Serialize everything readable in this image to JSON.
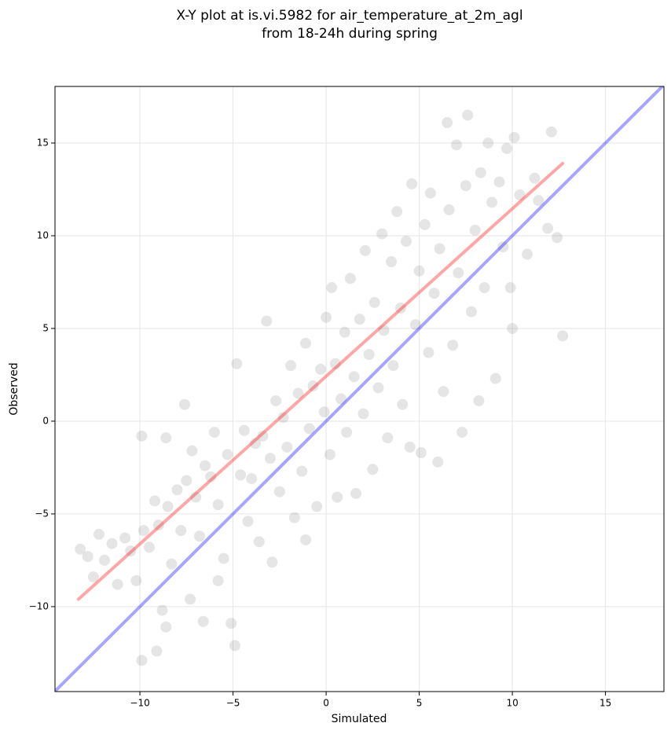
{
  "chart_data": {
    "type": "scatter",
    "title": [
      "X-Y plot at is.vi.5982 for air_temperature_at_2m_agl",
      "from 18-24h during spring"
    ],
    "xlabel": "Simulated",
    "ylabel": "Observed",
    "xlim": [
      -14.56,
      18.14
    ],
    "ylim": [
      -14.58,
      18.05
    ],
    "xticks": [
      {
        "value": -10,
        "label": "−10"
      },
      {
        "value": -5,
        "label": "−5"
      },
      0,
      5,
      10,
      15
    ],
    "yticks": [
      {
        "value": -10,
        "label": "−10"
      },
      {
        "value": -5,
        "label": "−5"
      },
      0,
      5,
      10,
      15
    ],
    "grid": true,
    "series": [
      {
        "kind": "points",
        "color": "#000000",
        "alpha": 0.1,
        "x": [
          -13.2,
          -12.8,
          -12.5,
          -12.2,
          -11.9,
          -11.5,
          -11.2,
          -10.8,
          -10.5,
          -10.2,
          -9.9,
          -9.8,
          -9.5,
          -9.2,
          -9.0,
          -8.8,
          -8.6,
          -8.5,
          -8.3,
          -8.0,
          -7.8,
          -7.6,
          -7.5,
          -7.3,
          -7.2,
          -7.0,
          -6.8,
          -6.6,
          -6.5,
          -6.2,
          -6.0,
          -5.8,
          -5.5,
          -5.3,
          -5.1,
          -4.9,
          -4.8,
          -4.6,
          -4.4,
          -4.2,
          -4.0,
          -3.8,
          -3.6,
          -3.4,
          -3.2,
          -3.0,
          -2.9,
          -2.7,
          -2.5,
          -2.3,
          -2.1,
          -1.9,
          -1.7,
          -1.5,
          -1.3,
          -1.1,
          -0.9,
          -0.7,
          -0.5,
          -0.3,
          -0.1,
          0.0,
          0.2,
          0.3,
          0.5,
          0.6,
          0.8,
          1.0,
          1.1,
          1.3,
          1.5,
          1.6,
          1.8,
          2.0,
          2.1,
          2.3,
          2.5,
          2.6,
          2.8,
          3.0,
          3.1,
          3.3,
          3.5,
          3.6,
          3.8,
          4.0,
          4.1,
          4.3,
          4.5,
          4.6,
          4.8,
          5.0,
          5.1,
          5.3,
          5.5,
          5.6,
          5.8,
          6.0,
          6.1,
          6.3,
          6.5,
          6.6,
          6.8,
          7.0,
          7.1,
          7.3,
          7.5,
          7.6,
          7.8,
          8.0,
          8.2,
          8.3,
          8.5,
          8.7,
          8.9,
          9.1,
          9.3,
          9.5,
          9.7,
          9.9,
          10.0,
          10.1,
          10.4,
          10.8,
          11.2,
          11.4,
          11.9,
          12.1,
          12.4,
          12.7,
          -9.9,
          -9.1,
          -8.6,
          -5.8,
          -1.1
        ],
        "values": [
          -6.9,
          -7.3,
          -8.4,
          -6.1,
          -7.5,
          -6.6,
          -8.8,
          -6.3,
          -7.0,
          -8.6,
          -0.8,
          -5.9,
          -6.8,
          -4.3,
          -5.6,
          -10.2,
          -0.9,
          -4.6,
          -7.7,
          -3.7,
          -5.9,
          0.9,
          -3.2,
          -9.6,
          -1.6,
          -4.1,
          -6.2,
          -10.8,
          -2.4,
          -3.0,
          -0.6,
          -4.5,
          -7.4,
          -1.8,
          -10.9,
          -12.1,
          3.1,
          -2.9,
          -0.5,
          -5.4,
          -3.1,
          -1.2,
          -6.5,
          -0.8,
          5.4,
          -2.0,
          -7.6,
          1.1,
          -3.8,
          0.2,
          -1.4,
          3.0,
          -5.2,
          1.5,
          -2.7,
          4.2,
          -0.4,
          1.9,
          -4.6,
          2.8,
          0.5,
          5.6,
          -1.8,
          7.2,
          3.1,
          -4.1,
          1.2,
          4.8,
          -0.6,
          7.7,
          2.4,
          -3.9,
          5.5,
          0.4,
          9.2,
          3.6,
          -2.6,
          6.4,
          1.8,
          10.1,
          4.9,
          -0.9,
          8.6,
          3.0,
          11.3,
          6.1,
          0.9,
          9.7,
          -1.4,
          12.8,
          5.2,
          8.1,
          -1.7,
          10.6,
          3.7,
          12.3,
          6.9,
          -2.2,
          9.3,
          1.6,
          16.1,
          11.4,
          4.1,
          14.9,
          8.0,
          -0.6,
          12.7,
          16.5,
          5.9,
          10.3,
          1.1,
          13.4,
          7.2,
          15.0,
          11.8,
          2.3,
          12.9,
          9.4,
          14.7,
          7.2,
          5.0,
          15.3,
          12.2,
          9.0,
          13.1,
          11.9,
          10.4,
          15.6,
          9.9,
          4.6,
          -12.9,
          -12.4,
          -11.1,
          -8.6,
          -6.4
        ]
      },
      {
        "kind": "line",
        "color": "#ff0000",
        "alpha": 0.35,
        "x": [
          -13.3,
          12.7
        ],
        "values": [
          -9.6,
          13.9
        ]
      },
      {
        "kind": "line",
        "color": "#0000ff",
        "alpha": 0.35,
        "x": [
          -14.56,
          18.14
        ],
        "values": [
          -14.56,
          18.14
        ]
      }
    ]
  }
}
